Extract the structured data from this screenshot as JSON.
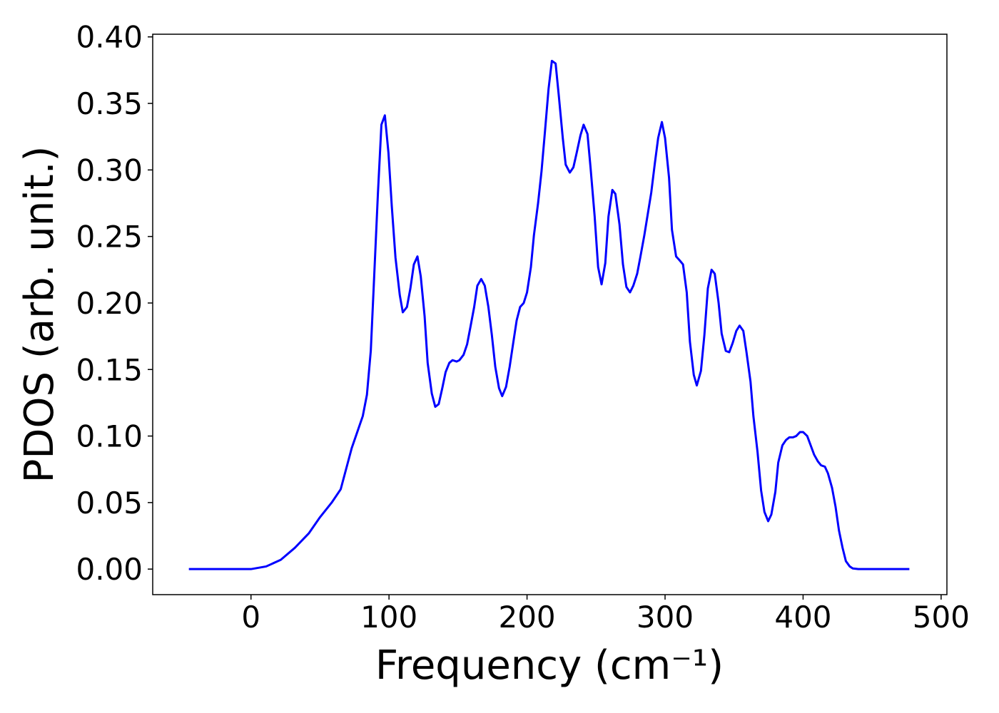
{
  "chart_data": {
    "type": "line",
    "xlabel": "Frequency (cm⁻¹)",
    "ylabel": "PDOS (arb. unit.)",
    "xlim": [
      -71.2,
      504.2
    ],
    "ylim": [
      -0.0192,
      0.402
    ],
    "xticks": [
      0,
      100,
      200,
      300,
      400,
      500
    ],
    "yticks": [
      {
        "value": 0,
        "label": "0.00"
      },
      {
        "value": 0.05,
        "label": "0.05"
      },
      {
        "value": 0.1,
        "label": "0.10"
      },
      {
        "value": 0.15,
        "label": "0.15"
      },
      {
        "value": 0.2,
        "label": "0.20"
      },
      {
        "value": 0.25,
        "label": "0.25"
      },
      {
        "value": 0.3,
        "label": "0.30"
      },
      {
        "value": 0.35,
        "label": "0.35"
      },
      {
        "value": 0.4,
        "label": "0.40"
      }
    ],
    "grid": false,
    "series": [
      {
        "color": "#0000ff",
        "x": [
          -45,
          -30,
          -15,
          0,
          11,
          21.6,
          31.8,
          42,
          50,
          58.5,
          65,
          73,
          77,
          81,
          84,
          86.8,
          89,
          92,
          94.5,
          97,
          99.6,
          102,
          104.7,
          107.8,
          110,
          113,
          115.5,
          118,
          120.6,
          123,
          125.8,
          128,
          131,
          133.5,
          136,
          138.6,
          141,
          143.7,
          146,
          149,
          151,
          154,
          156.6,
          159,
          161.7,
          164,
          166.8,
          169.4,
          172,
          174.5,
          177,
          179.7,
          182,
          184.8,
          187.4,
          190,
          192.5,
          195,
          197.6,
          200,
          202.8,
          205,
          208,
          210.5,
          213,
          215.6,
          218,
          220.7,
          223,
          225.9,
          228,
          231,
          233.6,
          236,
          238.7,
          241,
          243.8,
          246,
          249,
          251.5,
          254,
          256.7,
          259,
          261.8,
          264,
          267,
          269.5,
          272,
          274.6,
          277,
          279.8,
          282,
          285,
          287.5,
          290,
          292.6,
          295,
          297.7,
          300,
          302.9,
          305,
          308,
          310.6,
          313,
          315.7,
          318,
          320.8,
          323,
          326,
          328.5,
          331,
          333.7,
          336,
          338.8,
          341,
          344,
          346.5,
          349,
          351.6,
          354,
          356.7,
          359,
          361.9,
          364,
          367,
          369.6,
          372,
          374.7,
          377,
          379.9,
          382,
          385,
          387.6,
          390,
          392.7,
          395,
          397.8,
          400,
          403,
          405.5,
          408,
          410.7,
          413,
          415.8,
          418,
          421,
          423.5,
          426,
          428.6,
          431,
          433.8,
          436,
          440,
          460,
          477
        ],
        "values": [
          0,
          0,
          0,
          0,
          0.002,
          0.007,
          0.016,
          0.027,
          0.039,
          0.05,
          0.06,
          0.091,
          0.103,
          0.115,
          0.131,
          0.164,
          0.214,
          0.283,
          0.334,
          0.341,
          0.313,
          0.273,
          0.234,
          0.206,
          0.193,
          0.197,
          0.211,
          0.229,
          0.235,
          0.22,
          0.19,
          0.155,
          0.132,
          0.122,
          0.124,
          0.136,
          0.148,
          0.155,
          0.157,
          0.156,
          0.157,
          0.161,
          0.169,
          0.182,
          0.197,
          0.213,
          0.218,
          0.213,
          0.197,
          0.176,
          0.152,
          0.136,
          0.13,
          0.137,
          0.152,
          0.17,
          0.187,
          0.197,
          0.2,
          0.208,
          0.227,
          0.251,
          0.275,
          0.299,
          0.329,
          0.361,
          0.382,
          0.38,
          0.356,
          0.324,
          0.304,
          0.298,
          0.302,
          0.313,
          0.326,
          0.334,
          0.327,
          0.302,
          0.265,
          0.227,
          0.214,
          0.23,
          0.265,
          0.285,
          0.282,
          0.259,
          0.229,
          0.212,
          0.208,
          0.213,
          0.222,
          0.234,
          0.251,
          0.267,
          0.283,
          0.305,
          0.324,
          0.336,
          0.324,
          0.294,
          0.255,
          0.235,
          0.232,
          0.229,
          0.208,
          0.171,
          0.146,
          0.138,
          0.149,
          0.176,
          0.211,
          0.225,
          0.222,
          0.2,
          0.177,
          0.164,
          0.163,
          0.17,
          0.179,
          0.183,
          0.179,
          0.163,
          0.141,
          0.115,
          0.088,
          0.059,
          0.043,
          0.036,
          0.041,
          0.058,
          0.08,
          0.093,
          0.097,
          0.099,
          0.099,
          0.1,
          0.103,
          0.103,
          0.1,
          0.093,
          0.086,
          0.081,
          0.078,
          0.077,
          0.072,
          0.061,
          0.047,
          0.029,
          0.016,
          0.006,
          0.002,
          0.0005,
          0,
          0,
          0
        ]
      }
    ]
  }
}
